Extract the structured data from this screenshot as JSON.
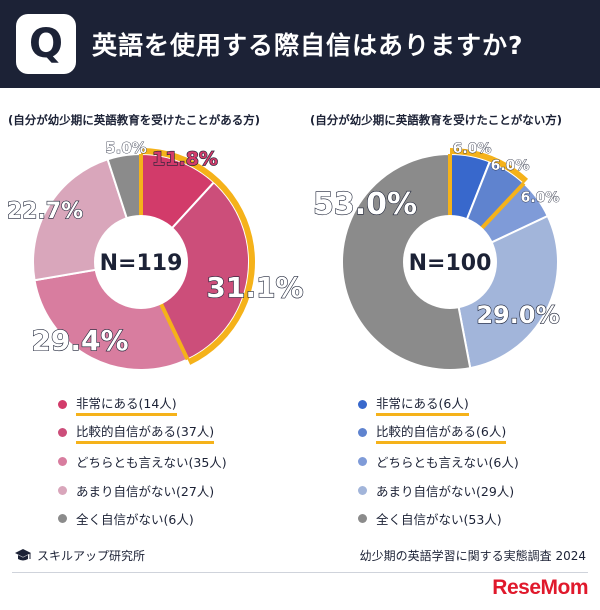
{
  "header": {
    "badge": "Q",
    "question": "英語を使用する際自信はありますか?"
  },
  "chart_data": [
    {
      "type": "pie",
      "title": "(自分が幼少期に英語教育を受けたことがある方)",
      "center_label": "N=119",
      "series": [
        {
          "name": "非常にある(14人)",
          "value": 11.8,
          "label": "11.8%",
          "color": "#d23b6a",
          "highlight": true
        },
        {
          "name": "比較的自信がある(37人)",
          "value": 31.1,
          "label": "31.1%",
          "color": "#cc4e7a",
          "highlight": true
        },
        {
          "name": "どちらとも言えない(35人)",
          "value": 29.4,
          "label": "29.4%",
          "color": "#d87d9f",
          "highlight": false
        },
        {
          "name": "あまり自信がない(27人)",
          "value": 22.7,
          "label": "22.7%",
          "color": "#d9a6bb",
          "highlight": false
        },
        {
          "name": "全く自信がない(6人)",
          "value": 5.0,
          "label": "5.0%",
          "color": "#8b8b8b",
          "highlight": false
        }
      ]
    },
    {
      "type": "pie",
      "title": "(自分が幼少期に英語教育を受けたことがない方)",
      "center_label": "N=100",
      "series": [
        {
          "name": "非常にある(6人)",
          "value": 6.0,
          "label": "6.0%",
          "color": "#3868cc",
          "highlight": true
        },
        {
          "name": "比較的自信がある(6人)",
          "value": 6.0,
          "label": "6.0%",
          "color": "#5f83cf",
          "highlight": true
        },
        {
          "name": "どちらとも言えない(6人)",
          "value": 6.0,
          "label": "6.0%",
          "color": "#7f9bd8",
          "highlight": false
        },
        {
          "name": "あまり自信がない(29人)",
          "value": 29.0,
          "label": "29.0%",
          "color": "#a2b5da",
          "highlight": false
        },
        {
          "name": "全く自信がない(53人)",
          "value": 53.0,
          "label": "53.0%",
          "color": "#8b8b8b",
          "highlight": false
        }
      ]
    }
  ],
  "footer": {
    "brand": "スキルアップ研究所",
    "survey": "幼少期の英語学習に関する実態調査 2024",
    "logo": "ReseMom"
  },
  "colors": {
    "header_bg": "#1c2236",
    "highlight": "#f5b21a"
  }
}
